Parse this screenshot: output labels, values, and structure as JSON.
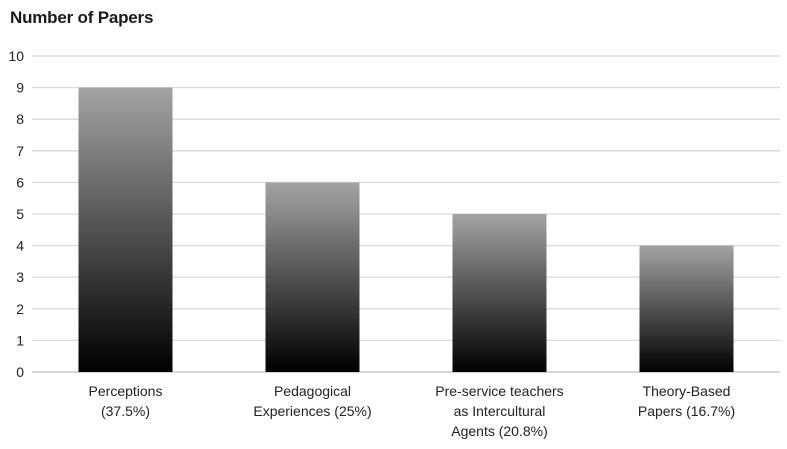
{
  "chart_data": {
    "type": "bar",
    "title": "Number of Papers",
    "categories": [
      [
        "Perceptions",
        "(37.5%)"
      ],
      [
        "Pedagogical",
        "Experiences (25%)"
      ],
      [
        "Pre-service teachers",
        "as Intercultural",
        "Agents (20.8%)"
      ],
      [
        "Theory-Based",
        "Papers (16.7%)"
      ]
    ],
    "values": [
      9,
      6,
      5,
      4
    ],
    "ylim": [
      0,
      10
    ],
    "yticks": [
      0,
      1,
      2,
      3,
      4,
      5,
      6,
      7,
      8,
      9,
      10
    ],
    "grid": true,
    "xlabel": "",
    "ylabel": ""
  },
  "colors": {
    "bar_top": "#a3a3a3",
    "bar_bottom": "#000000",
    "grid": "#d9d9d9",
    "axis": "#bdbdbd"
  }
}
